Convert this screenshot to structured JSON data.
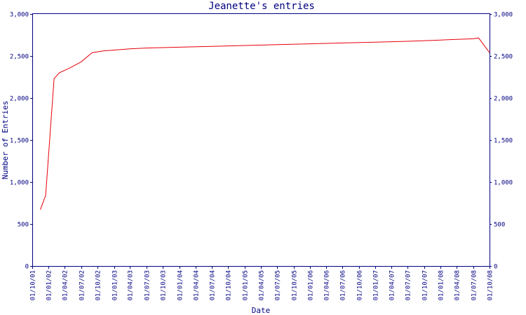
{
  "chart_data": {
    "type": "line",
    "title": "Jeanette's entries",
    "xlabel": "Date",
    "ylabel": "Number of Entries",
    "ylim": [
      0,
      3000
    ],
    "y_ticks": [
      0,
      500,
      1000,
      1500,
      2000,
      2500,
      3000
    ],
    "y_tick_labels": [
      "0",
      "500",
      "1,000",
      "1,500",
      "2,000",
      "2,500",
      "3,000"
    ],
    "x_tick_labels": [
      "01/10/01",
      "01/01/02",
      "01/04/02",
      "01/07/02",
      "01/10/02",
      "01/01/03",
      "01/04/03",
      "01/07/03",
      "01/10/03",
      "01/01/04",
      "01/04/04",
      "01/07/04",
      "01/10/04",
      "01/01/05",
      "01/04/05",
      "01/07/05",
      "01/10/05",
      "01/01/06",
      "01/04/06",
      "01/07/06",
      "01/10/06",
      "01/01/07",
      "01/04/07",
      "01/07/07",
      "01/10/07",
      "01/01/08",
      "01/04/08",
      "01/07/08",
      "01/10/08"
    ],
    "grid": false,
    "colors": {
      "line": "#e8000b",
      "axis": "#000080",
      "text": "#000080",
      "background": "#ffffff"
    },
    "series": [
      {
        "x": [
          "2001-11-15",
          "2001-12-15",
          "2002-01-31",
          "2002-03-01",
          "2002-05-01",
          "2002-07-01",
          "2002-09-01",
          "2002-11-01",
          "2003-04-01",
          "2003-07-01",
          "2003-10-01",
          "2004-01-01",
          "2004-07-01",
          "2005-01-01",
          "2005-07-01",
          "2006-01-01",
          "2006-07-01",
          "2007-01-01",
          "2007-07-01",
          "2008-01-01",
          "2008-07-01",
          "2008-08-01",
          "2008-10-01"
        ],
        "y": [
          670,
          840,
          2230,
          2300,
          2360,
          2430,
          2540,
          2560,
          2585,
          2595,
          2600,
          2605,
          2615,
          2625,
          2635,
          2645,
          2655,
          2665,
          2675,
          2690,
          2705,
          2715,
          2540
        ]
      }
    ]
  }
}
